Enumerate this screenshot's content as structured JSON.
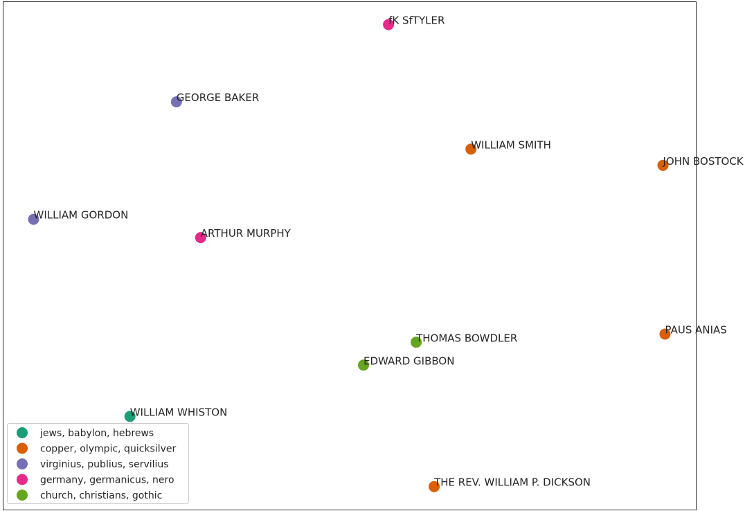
{
  "chart_data": {
    "type": "scatter",
    "title": "",
    "xlabel": "",
    "ylabel": "",
    "xlim": [
      0,
      1000
    ],
    "ylim": [
      0,
      1000
    ],
    "grid": false,
    "axes_ticks": false,
    "legend_placement": "lower-left",
    "series": [
      {
        "name": "jews, babylon, hebrews",
        "color": "#1b9e77",
        "points": [
          {
            "label": "WILLIAM WHISTON",
            "x": 183,
            "y": 184
          }
        ]
      },
      {
        "name": "copper, olympic, quicksilver",
        "color": "#d95f02",
        "points": [
          {
            "label": "WILLIAM SMITH",
            "x": 675,
            "y": 710
          },
          {
            "label": "JOHN BOSTOCK",
            "x": 952,
            "y": 678
          },
          {
            "label": "PAUS ANIAS",
            "x": 955,
            "y": 346
          },
          {
            "label": "THE REV. WILLIAM P. DICKSON",
            "x": 622,
            "y": 46
          }
        ]
      },
      {
        "name": "virginius, publius, servilius",
        "color": "#7570b3",
        "points": [
          {
            "label": "GEORGE BAKER",
            "x": 250,
            "y": 803
          },
          {
            "label": "WILLIAM GORDON",
            "x": 44,
            "y": 572
          }
        ]
      },
      {
        "name": "germany, germanicus, nero",
        "color": "#e7298a",
        "points": [
          {
            "label": "fK SfTYLER",
            "x": 556,
            "y": 955
          },
          {
            "label": "ARTHUR MURPHY",
            "x": 285,
            "y": 536
          }
        ]
      },
      {
        "name": "church, christians, gothic",
        "color": "#66a61e",
        "points": [
          {
            "label": "THOMAS BOWDLER",
            "x": 596,
            "y": 330
          },
          {
            "label": "EDWARD GIBBON",
            "x": 520,
            "y": 285
          }
        ]
      }
    ]
  }
}
